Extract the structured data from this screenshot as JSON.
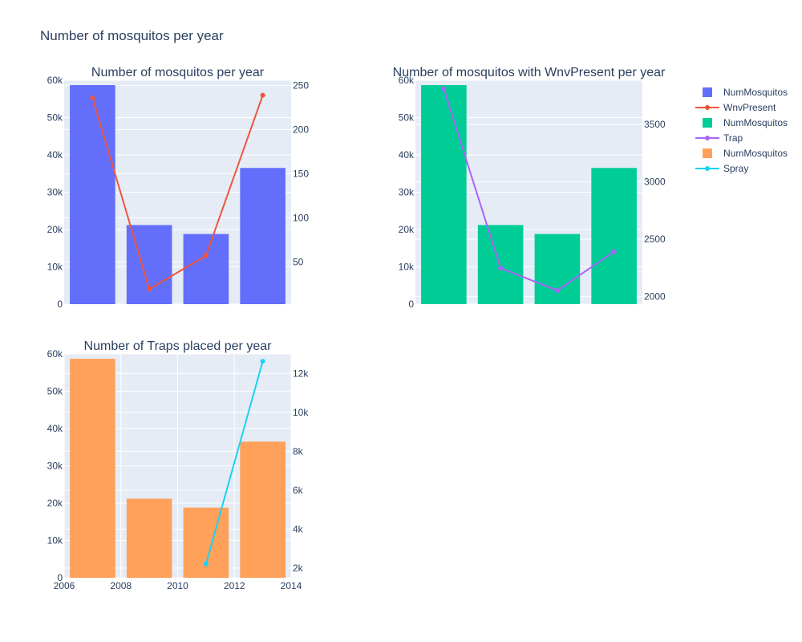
{
  "title": "Number of mosquitos per year",
  "legend": {
    "position": "top-right",
    "items": [
      {
        "label": "NumMosquitos",
        "kind": "bar",
        "color": "#636efa"
      },
      {
        "label": "WnvPresent",
        "kind": "line",
        "color": "#ef553b"
      },
      {
        "label": "NumMosquitos",
        "kind": "bar",
        "color": "#00cc96"
      },
      {
        "label": "Trap",
        "kind": "line",
        "color": "#ab63fa"
      },
      {
        "label": "NumMosquitos",
        "kind": "bar",
        "color": "#ffa15a"
      },
      {
        "label": "Spray",
        "kind": "line",
        "color": "#19d3f3"
      }
    ]
  },
  "chart_data": [
    {
      "type": "bar",
      "title": "Number of mosquitos per year",
      "x": [
        2007,
        2009,
        2011,
        2013
      ],
      "xlim": [
        2006,
        2014
      ],
      "xticks": [],
      "ylim": [
        0,
        60000
      ],
      "yticks": [
        0,
        10000,
        20000,
        30000,
        40000,
        50000,
        60000
      ],
      "ytick_labels": [
        "0",
        "10k",
        "20k",
        "30k",
        "40k",
        "50k",
        "60k"
      ],
      "y2lim": [
        2,
        256
      ],
      "y2ticks": [
        50,
        100,
        150,
        200,
        250
      ],
      "y2tick_labels": [
        "50",
        "100",
        "150",
        "200",
        "250"
      ],
      "grid": true,
      "series": [
        {
          "name": "NumMosquitos",
          "kind": "bar",
          "axis": "y",
          "color": "#636efa",
          "values": [
            58700,
            21200,
            18800,
            36500
          ]
        },
        {
          "name": "WnvPresent",
          "kind": "line",
          "axis": "y2",
          "color": "#ef553b",
          "values": [
            236,
            19,
            57,
            239
          ]
        }
      ]
    },
    {
      "type": "bar",
      "title": "Number of mosquitos with WnvPresent per year",
      "x": [
        2007,
        2009,
        2011,
        2013
      ],
      "xlim": [
        2006,
        2014
      ],
      "xticks": [],
      "ylim": [
        0,
        60000
      ],
      "yticks": [
        0,
        10000,
        20000,
        30000,
        40000,
        50000,
        60000
      ],
      "ytick_labels": [
        "0",
        "10k",
        "20k",
        "30k",
        "40k",
        "50k",
        "60k"
      ],
      "y2lim": [
        1935,
        3885
      ],
      "y2ticks": [
        2000,
        2500,
        3000,
        3500
      ],
      "y2tick_labels": [
        "2000",
        "2500",
        "3000",
        "3500"
      ],
      "grid": true,
      "series": [
        {
          "name": "NumMosquitos",
          "kind": "bar",
          "axis": "y",
          "color": "#00cc96",
          "values": [
            58700,
            21200,
            18800,
            36500
          ]
        },
        {
          "name": "Trap",
          "kind": "line",
          "axis": "y2",
          "color": "#ab63fa",
          "values": [
            3811,
            2249,
            2054,
            2392
          ]
        }
      ]
    },
    {
      "type": "bar",
      "title": "Number of Traps placed per year",
      "x": [
        2007,
        2009,
        2011,
        2013
      ],
      "xlim": [
        2006,
        2014
      ],
      "xticks": [
        2006,
        2008,
        2010,
        2012,
        2014
      ],
      "xtick_labels": [
        "2006",
        "2008",
        "2010",
        "2012",
        "2014"
      ],
      "ylim": [
        0,
        60000
      ],
      "yticks": [
        0,
        10000,
        20000,
        30000,
        40000,
        50000,
        60000
      ],
      "ytick_labels": [
        "0",
        "10k",
        "20k",
        "30k",
        "40k",
        "50k",
        "60k"
      ],
      "y2lim": [
        1500,
        13000
      ],
      "y2ticks": [
        2000,
        4000,
        6000,
        8000,
        10000,
        12000
      ],
      "y2tick_labels": [
        "2k",
        "4k",
        "6k",
        "8k",
        "10k",
        "12k"
      ],
      "grid": true,
      "series": [
        {
          "name": "NumMosquitos",
          "kind": "bar",
          "axis": "y",
          "color": "#ffa15a",
          "values": [
            58700,
            21200,
            18800,
            36500
          ]
        },
        {
          "name": "Spray",
          "kind": "line",
          "axis": "y2",
          "color": "#19d3f3",
          "x": [
            2011,
            2013
          ],
          "values": [
            2209,
            12626
          ]
        }
      ]
    }
  ]
}
